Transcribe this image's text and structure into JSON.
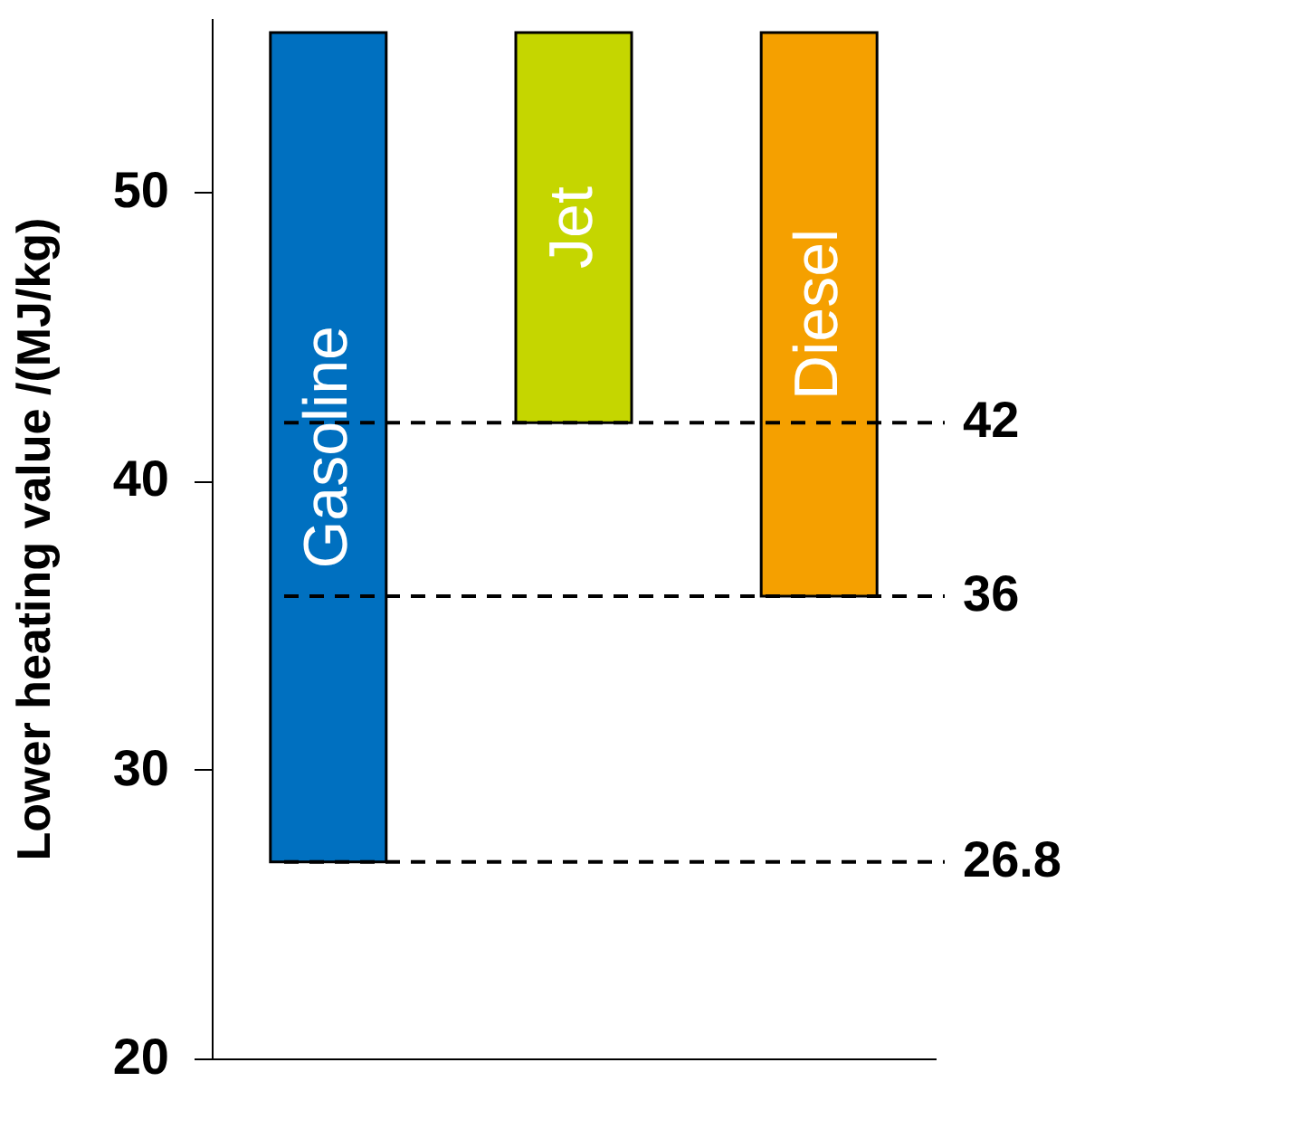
{
  "chart_data": {
    "type": "bar",
    "ylabel": "Lower heating value /(MJ/kg)",
    "categories": [
      "Gasoline",
      "Jet",
      "Diesel"
    ],
    "base": [
      26.8,
      42,
      36
    ],
    "values": [
      28.7,
      13.5,
      19.5
    ],
    "colors": [
      "#0070c0",
      "#c5d600",
      "#f5a000"
    ],
    "ylim": [
      20,
      56
    ],
    "yticks": [
      20,
      30,
      40,
      50
    ],
    "tick_labels": "y",
    "grid": false,
    "ref_lines": [
      {
        "axis": "y",
        "value": 42,
        "label": "42",
        "line_style": "dashed"
      },
      {
        "axis": "y",
        "value": 36,
        "label": "36",
        "line_style": "dashed"
      },
      {
        "axis": "y",
        "value": 26.8,
        "label": "26.8",
        "line_style": "dashed"
      }
    ]
  }
}
